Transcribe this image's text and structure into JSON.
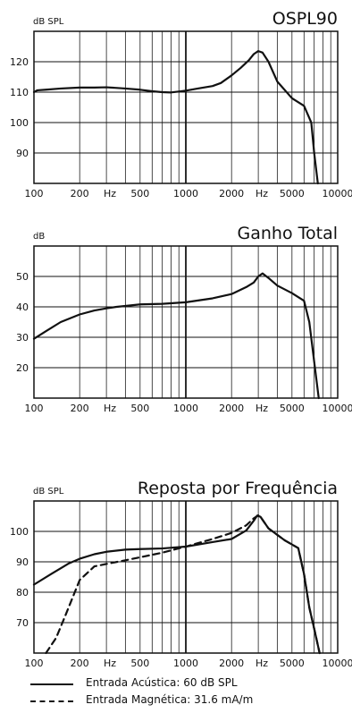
{
  "chart_data": [
    {
      "type": "line",
      "title": "OSPL90",
      "ylabel": "dB SPL",
      "xlabel": "Hz",
      "xscale": "log",
      "xlim": [
        100,
        10000
      ],
      "ylim": [
        80,
        130
      ],
      "x_ticks": [
        "100",
        "200",
        "500",
        "1000",
        "2000",
        "5000",
        "10000"
      ],
      "y_ticks": [
        "120",
        "110",
        "100",
        "90"
      ],
      "series": [
        {
          "style": "solid",
          "x": [
            100,
            105,
            120,
            150,
            200,
            250,
            300,
            400,
            500,
            600,
            700,
            800,
            900,
            1000,
            1200,
            1500,
            1700,
            2000,
            2300,
            2600,
            2800,
            3000,
            3200,
            3500,
            4000,
            5000,
            6000,
            6700,
            7000,
            7400
          ],
          "y": [
            110,
            110.6,
            110.8,
            111.2,
            111.5,
            111.5,
            111.6,
            111.2,
            110.8,
            110.3,
            110,
            109.9,
            110.2,
            110.5,
            111.2,
            112,
            113,
            115.5,
            118,
            120.5,
            122.5,
            123.5,
            123,
            120,
            113.5,
            108,
            105.5,
            100,
            90,
            80
          ]
        }
      ]
    },
    {
      "type": "line",
      "title": "Ganho Total",
      "ylabel": "dB",
      "xlabel": "Hz",
      "xscale": "log",
      "xlim": [
        100,
        10000
      ],
      "ylim": [
        10,
        60
      ],
      "x_ticks": [
        "100",
        "200",
        "500",
        "1000",
        "2000",
        "5000",
        "10000"
      ],
      "y_ticks": [
        "50",
        "40",
        "30",
        "20"
      ],
      "series": [
        {
          "style": "solid",
          "x": [
            100,
            120,
            150,
            200,
            250,
            300,
            350,
            400,
            500,
            700,
            1000,
            1500,
            2000,
            2500,
            2800,
            3000,
            3200,
            3500,
            4000,
            5000,
            6000,
            6500,
            7000,
            7500
          ],
          "y": [
            29.5,
            32,
            35,
            37.5,
            38.8,
            39.5,
            40,
            40.3,
            40.8,
            41,
            41.5,
            42.8,
            44.2,
            46.5,
            48,
            50,
            51,
            49.5,
            47,
            44.5,
            42,
            35,
            22,
            10
          ]
        }
      ]
    },
    {
      "type": "line",
      "title": "Reposta por Frequência",
      "ylabel": "dB SPL",
      "xlabel": "Hz",
      "xscale": "log",
      "xlim": [
        100,
        10000
      ],
      "ylim": [
        60,
        110
      ],
      "x_ticks": [
        "100",
        "200",
        "500",
        "1000",
        "2000",
        "5000",
        "10000"
      ],
      "y_ticks": [
        "100",
        "90",
        "80",
        "70"
      ],
      "series": [
        {
          "style": "solid",
          "x": [
            100,
            130,
            170,
            200,
            250,
            300,
            400,
            500,
            700,
            1000,
            1500,
            2000,
            2500,
            2800,
            2950,
            3100,
            3500,
            4500,
            5500,
            6000,
            6500,
            7000,
            7600
          ],
          "y": [
            82.5,
            86,
            89.5,
            91,
            92.5,
            93.3,
            94,
            94.2,
            94.4,
            95,
            96.5,
            97.5,
            100.3,
            103.5,
            105.2,
            104.8,
            101,
            97,
            94.5,
            86,
            75,
            68,
            60
          ]
        },
        {
          "style": "dashed",
          "x": [
            120,
            140,
            160,
            200,
            250,
            300,
            400,
            500,
            700,
            1000,
            1500,
            2000,
            2500,
            2800,
            3000,
            3100,
            3500,
            4500,
            5500,
            6000,
            6500,
            7000,
            7600
          ],
          "y": [
            60,
            65,
            72,
            84,
            88.5,
            89.3,
            90.5,
            91.5,
            93,
            95,
            97.5,
            99.5,
            102,
            104.3,
            105.3,
            104.8,
            101,
            97,
            94.5,
            86,
            75,
            68,
            60
          ]
        }
      ]
    }
  ],
  "legend": [
    {
      "style": "solid",
      "label": "Entrada Acústica: 60 dB SPL"
    },
    {
      "style": "dashed",
      "label": "Entrada Magnética: 31.6 mA/m"
    }
  ]
}
